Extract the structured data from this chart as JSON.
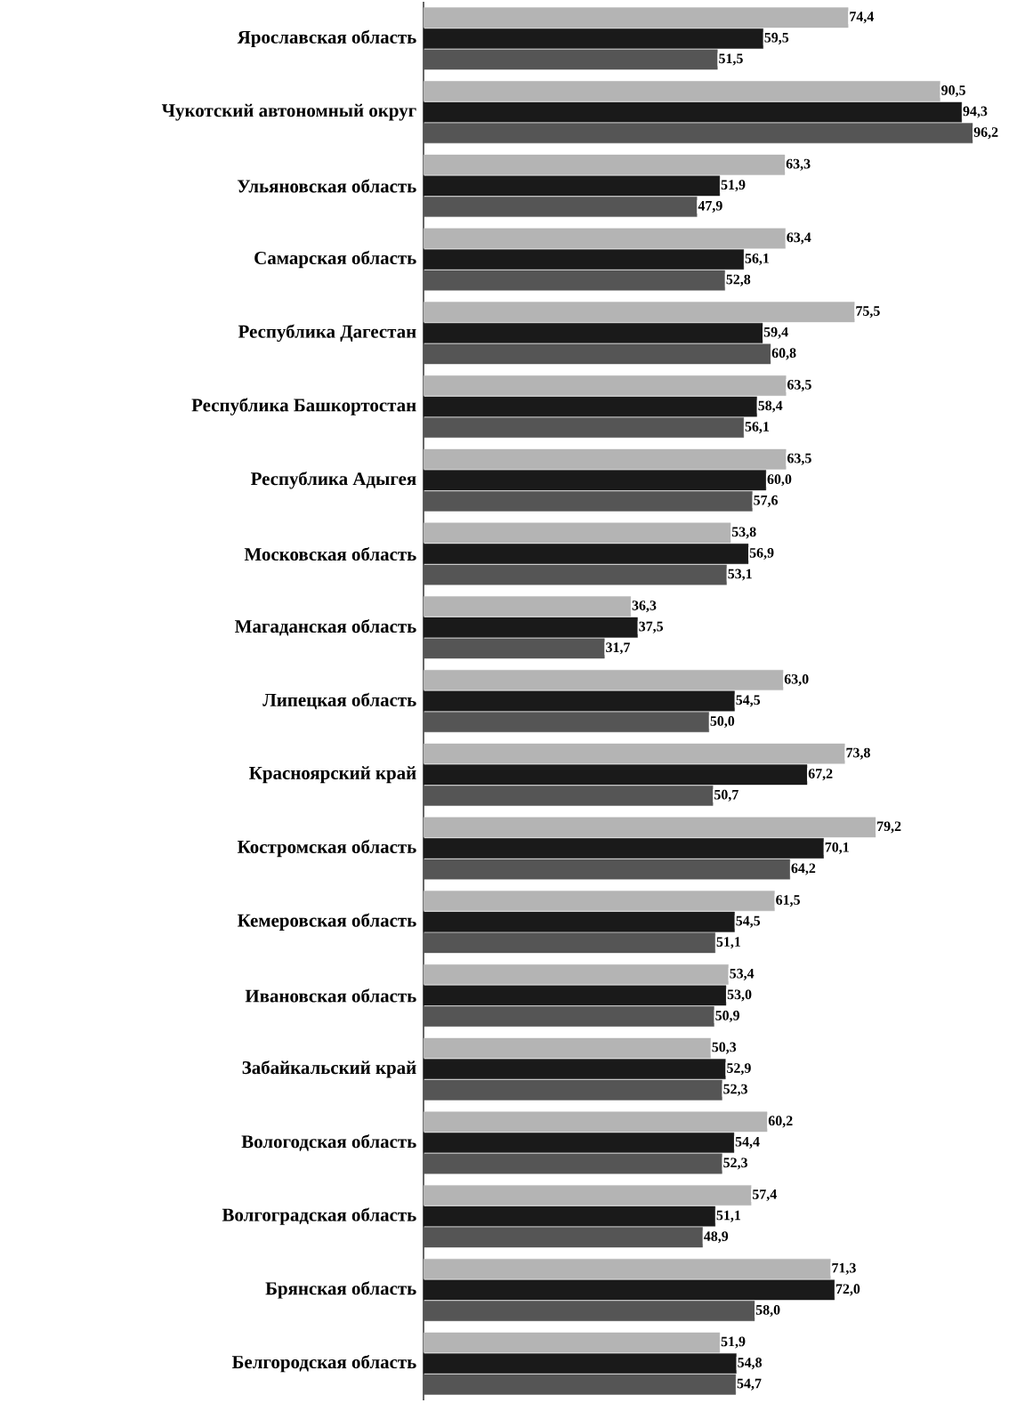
{
  "chart_data": {
    "type": "bar",
    "orientation": "horizontal",
    "categories": [
      "Ярославская область",
      "Чукотский автономный округ",
      "Ульяновская область",
      "Самарская область",
      "Республика Дагестан",
      "Республика Башкортостан",
      "Республика Адыгея",
      "Московская область",
      "Магаданская область",
      "Липецкая область",
      "Красноярский край",
      "Костромская область",
      "Кемеровская область",
      "Ивановская область",
      "Забайкальский край",
      "Вологодская область",
      "Волгоградская область",
      "Брянская область",
      "Белгородская область"
    ],
    "series": [
      {
        "color": "#b4b4b4",
        "values": [
          74.4,
          90.5,
          63.3,
          63.4,
          75.5,
          63.5,
          63.5,
          53.8,
          36.3,
          63.0,
          73.8,
          79.2,
          61.5,
          53.4,
          50.3,
          60.2,
          57.4,
          71.3,
          51.9
        ],
        "value_labels": [
          "74,4",
          "90,5",
          "63,3",
          "63,4",
          "75,5",
          "63,5",
          "63,5",
          "53,8",
          "36,3",
          "63,0",
          "73,8",
          "79,2",
          "61,5",
          "53,4",
          "50,3",
          "60,2",
          "57,4",
          "71,3",
          "51,9"
        ]
      },
      {
        "color": "#1a1a1a",
        "values": [
          59.5,
          94.3,
          51.9,
          56.1,
          59.4,
          58.4,
          60.0,
          56.9,
          37.5,
          54.5,
          67.2,
          70.1,
          54.5,
          53.0,
          52.9,
          54.4,
          51.1,
          72.0,
          54.8
        ],
        "value_labels": [
          "59,5",
          "94,3",
          "51,9",
          "56,1",
          "59,4",
          "58,4",
          "60,0",
          "56,9",
          "37,5",
          "54,5",
          "67,2",
          "70,1",
          "54,5",
          "53,0",
          "52,9",
          "54,4",
          "51,1",
          "72,0",
          "54,8"
        ]
      },
      {
        "color": "#555555",
        "values": [
          51.5,
          96.2,
          47.9,
          52.8,
          60.8,
          56.1,
          57.6,
          53.1,
          31.7,
          50.0,
          50.7,
          64.2,
          51.1,
          50.9,
          52.3,
          52.3,
          48.9,
          58.0,
          54.7
        ],
        "value_labels": [
          "51,5",
          "96,2",
          "47,9",
          "52,8",
          "60,8",
          "56,1",
          "57,6",
          "53,1",
          "31,7",
          "50,0",
          "50,7",
          "64,2",
          "51,1",
          "50,9",
          "52,3",
          "52,3",
          "48,9",
          "58,0",
          "54,7"
        ]
      }
    ]
  }
}
